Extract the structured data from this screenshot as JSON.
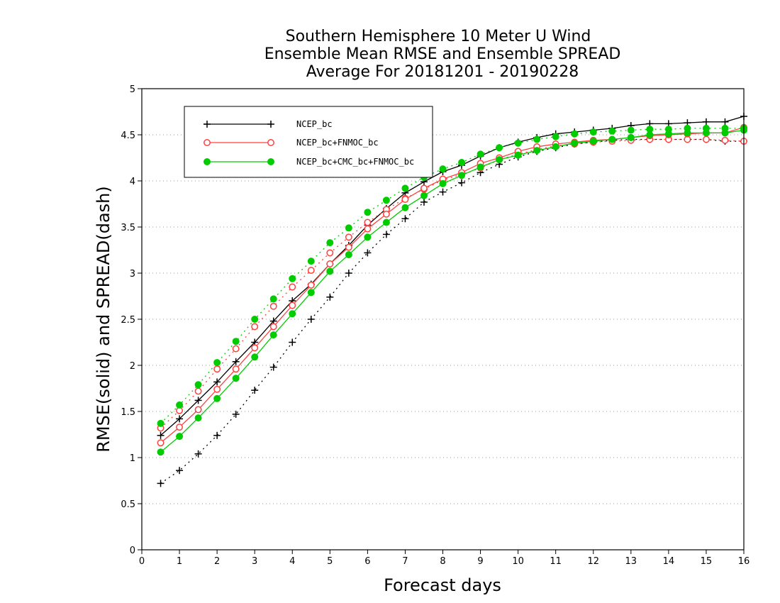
{
  "chart_data": {
    "type": "line",
    "title_lines": [
      "Southern Hemisphere 10 Meter U Wind",
      "Ensemble Mean RMSE and Ensemble SPREAD",
      "Average For 20181201 - 20190228"
    ],
    "xlabel": "Forecast days",
    "ylabel": "RMSE(solid) and SPREAD(dash)",
    "xlim": [
      0,
      16
    ],
    "ylim": [
      0,
      5
    ],
    "x_ticks": [
      "0",
      "1",
      "2",
      "3",
      "4",
      "5",
      "6",
      "7",
      "8",
      "9",
      "10",
      "11",
      "12",
      "13",
      "14",
      "15",
      "16"
    ],
    "y_ticks": [
      "0",
      "0.5",
      "1",
      "1.5",
      "2",
      "2.5",
      "3",
      "3.5",
      "4",
      "4.5",
      "5"
    ],
    "grid": "horizontal dotted",
    "legend_position": "top-left",
    "x": [
      0.5,
      1,
      1.5,
      2,
      2.5,
      3,
      3.5,
      4,
      4.5,
      5,
      5.5,
      6,
      6.5,
      7,
      7.5,
      8,
      8.5,
      9,
      9.5,
      10,
      10.5,
      11,
      11.5,
      12,
      12.5,
      13,
      13.5,
      14,
      14.5,
      15,
      15.5,
      16
    ],
    "series": [
      {
        "name": "NCEP_bc",
        "color": "#000000",
        "marker": "plus",
        "rmse": [
          1.24,
          1.42,
          1.62,
          1.82,
          2.04,
          2.25,
          2.48,
          2.7,
          2.88,
          3.1,
          3.3,
          3.52,
          3.7,
          3.87,
          3.99,
          4.1,
          4.17,
          4.27,
          4.36,
          4.42,
          4.47,
          4.51,
          4.53,
          4.55,
          4.57,
          4.6,
          4.62,
          4.62,
          4.63,
          4.64,
          4.64,
          4.7
        ],
        "spread": [
          0.72,
          0.86,
          1.04,
          1.24,
          1.47,
          1.73,
          1.98,
          2.25,
          2.5,
          2.74,
          3.0,
          3.22,
          3.42,
          3.59,
          3.77,
          3.88,
          3.98,
          4.09,
          4.18,
          4.26,
          4.32,
          4.36,
          4.4,
          4.42,
          4.44,
          4.45,
          4.45,
          4.45,
          4.45,
          4.45,
          4.43,
          4.43
        ]
      },
      {
        "name": "NCEP_bc+FNMOC_bc",
        "color": "#ff4040",
        "marker": "open-circle",
        "rmse": [
          1.16,
          1.33,
          1.52,
          1.74,
          1.96,
          2.19,
          2.42,
          2.65,
          2.87,
          3.1,
          3.28,
          3.48,
          3.64,
          3.8,
          3.92,
          4.02,
          4.09,
          4.19,
          4.25,
          4.32,
          4.37,
          4.4,
          4.42,
          4.44,
          4.45,
          4.47,
          4.49,
          4.5,
          4.51,
          4.52,
          4.52,
          4.58
        ],
        "spread": [
          1.32,
          1.51,
          1.72,
          1.96,
          2.18,
          2.42,
          2.64,
          2.85,
          3.03,
          3.22,
          3.39,
          3.55,
          3.69,
          3.81,
          3.91,
          4.01,
          4.07,
          4.14,
          4.23,
          4.29,
          4.34,
          4.38,
          4.4,
          4.42,
          4.43,
          4.44,
          4.45,
          4.45,
          4.45,
          4.45,
          4.44,
          4.43
        ]
      },
      {
        "name": "NCEP_bc+CMC_bc+FNMOC_bc",
        "color": "#00cc00",
        "marker": "filled-circle",
        "rmse": [
          1.06,
          1.23,
          1.43,
          1.64,
          1.86,
          2.09,
          2.33,
          2.56,
          2.79,
          3.02,
          3.2,
          3.39,
          3.55,
          3.71,
          3.84,
          3.97,
          4.06,
          4.15,
          4.23,
          4.28,
          4.33,
          4.37,
          4.41,
          4.43,
          4.45,
          4.47,
          4.5,
          4.51,
          4.52,
          4.52,
          4.52,
          4.55
        ],
        "spread": [
          1.37,
          1.57,
          1.79,
          2.03,
          2.26,
          2.5,
          2.72,
          2.94,
          3.13,
          3.33,
          3.49,
          3.66,
          3.79,
          3.92,
          4.04,
          4.13,
          4.2,
          4.29,
          4.36,
          4.41,
          4.45,
          4.48,
          4.51,
          4.53,
          4.54,
          4.55,
          4.56,
          4.56,
          4.57,
          4.57,
          4.57,
          4.57
        ]
      }
    ]
  }
}
